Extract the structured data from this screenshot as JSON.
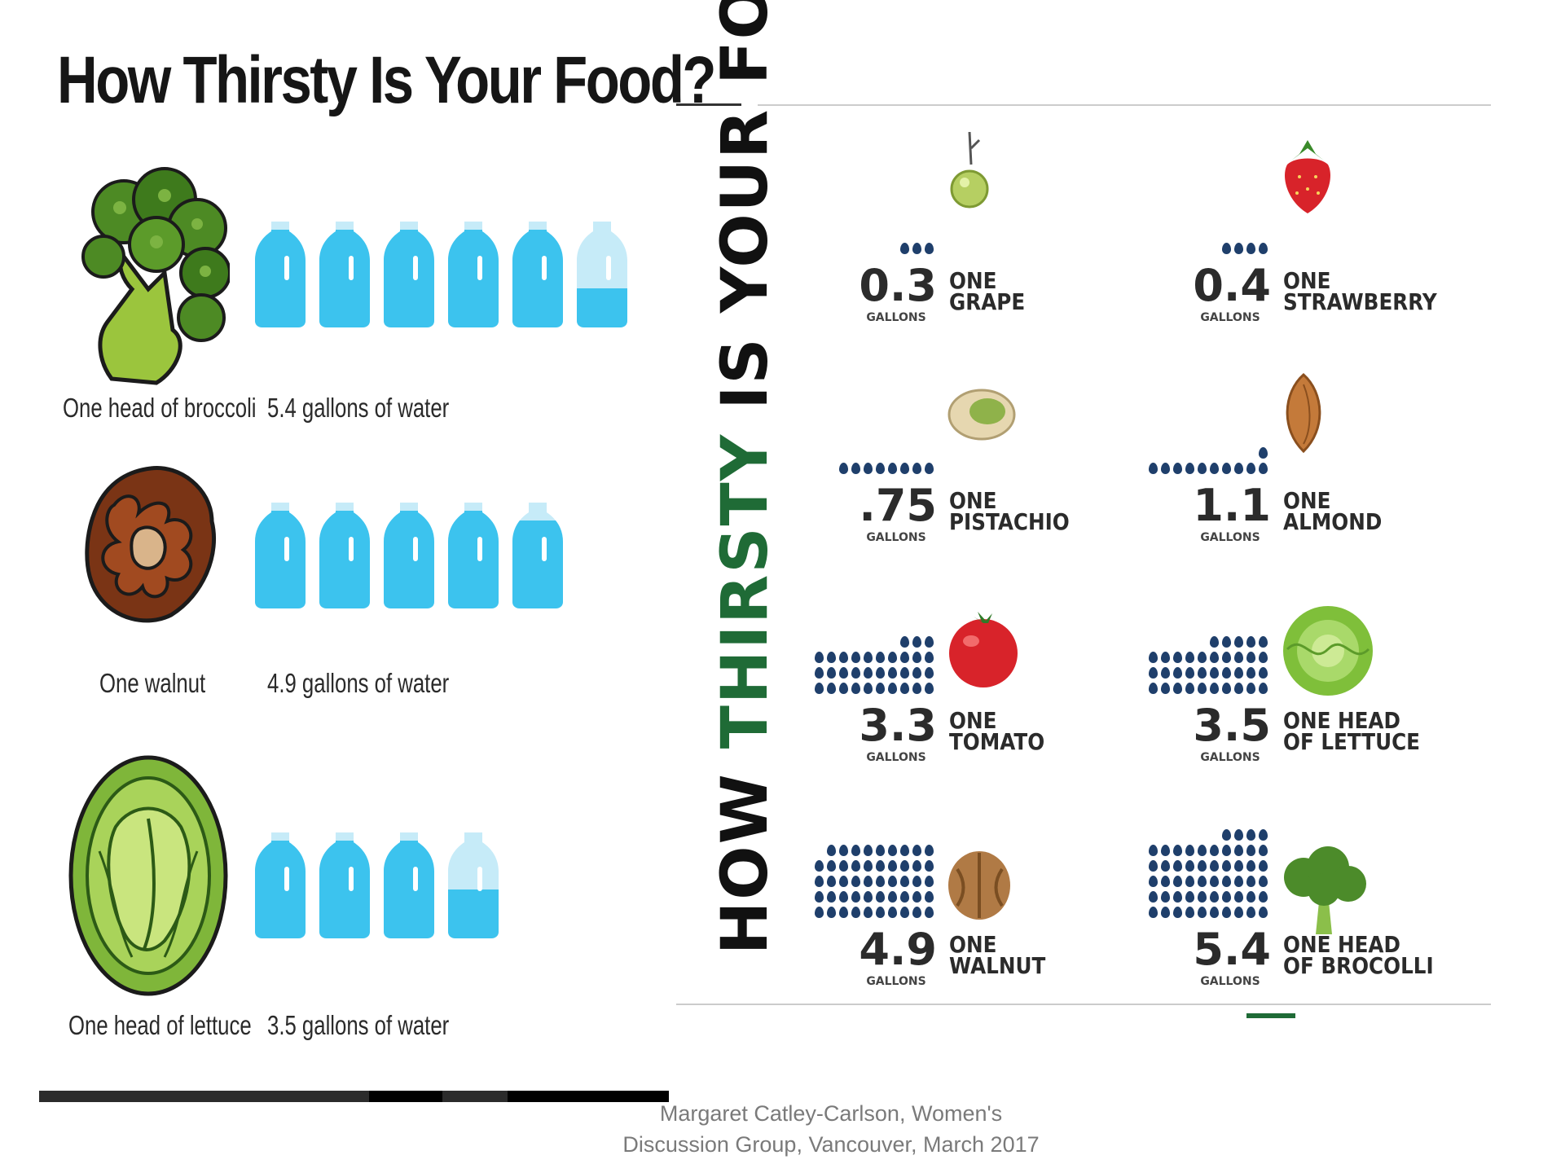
{
  "left_panel": {
    "title": "How Thirsty Is Your Food?",
    "rows": [
      {
        "food": "One head of broccoli",
        "water": "5.4 gallons of water",
        "gallons": 5.4
      },
      {
        "food": "One walnut",
        "water": "4.9 gallons of water",
        "gallons": 4.9
      },
      {
        "food": "One head of lettuce",
        "water": "3.5 gallons of water",
        "gallons": 3.5
      }
    ]
  },
  "right_panel": {
    "vertical_title": {
      "part1": "HOW ",
      "part2": "THIRSTY",
      "part3": " IS YOUR FOO"
    },
    "items": [
      {
        "value": "0.3",
        "unit": "GALLONS",
        "label_line1": "ONE",
        "label_line2": "GRAPE",
        "drops": 3
      },
      {
        "value": "0.4",
        "unit": "GALLONS",
        "label_line1": "ONE",
        "label_line2": "STRAWBERRY",
        "drops": 4
      },
      {
        "value": ".75",
        "unit": "GALLONS",
        "label_line1": "ONE",
        "label_line2": "PISTACHIO",
        "drops": 8
      },
      {
        "value": "1.1",
        "unit": "GALLONS",
        "label_line1": "ONE",
        "label_line2": "ALMOND",
        "drops": 11
      },
      {
        "value": "3.3",
        "unit": "GALLONS",
        "label_line1": "ONE",
        "label_line2": "TOMATO",
        "drops": 33
      },
      {
        "value": "3.5",
        "unit": "GALLONS",
        "label_line1": "ONE HEAD",
        "label_line2": "OF LETTUCE",
        "drops": 35
      },
      {
        "value": "4.9",
        "unit": "GALLONS",
        "label_line1": "ONE",
        "label_line2": "WALNUT",
        "drops": 49
      },
      {
        "value": "5.4",
        "unit": "GALLONS",
        "label_line1": "ONE HEAD",
        "label_line2": "OF BROCOLLI",
        "drops": 54
      }
    ]
  },
  "footer": {
    "line1": "Margaret Catley-Carlson, Women's",
    "line2": "Discussion Group,  Vancouver, March 2017"
  },
  "colors": {
    "jug": "#3cc3ee",
    "jug_empty": "#c6ebf8",
    "drop": "#1f3f6b",
    "accent_green": "#1f6b36"
  }
}
